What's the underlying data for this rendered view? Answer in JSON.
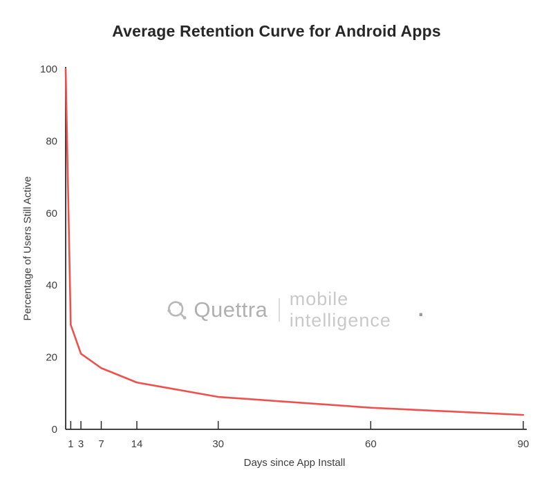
{
  "title": "Average Retention Curve for Android Apps",
  "watermark": {
    "brand": "Quettra",
    "tagline": "mobile intelligence",
    "dot": "."
  },
  "chart_data": {
    "type": "line",
    "title": "Average Retention Curve for Android Apps",
    "xlabel": "Days since App Install",
    "ylabel": "Percentage of Users Still Active",
    "x": [
      0,
      1,
      3,
      7,
      14,
      30,
      60,
      90
    ],
    "values": [
      100,
      29,
      21,
      17,
      13,
      9,
      6,
      4
    ],
    "xlim": [
      0,
      90
    ],
    "ylim": [
      0,
      100
    ],
    "x_ticks": [
      1,
      3,
      7,
      14,
      30,
      60,
      90
    ],
    "y_ticks": [
      0,
      20,
      40,
      60,
      80,
      100
    ],
    "line_color": "#f0504b",
    "axis_color": "#2a2a2a",
    "tick_label_color": "#3d3d3d",
    "grid": false,
    "legend": "none"
  }
}
